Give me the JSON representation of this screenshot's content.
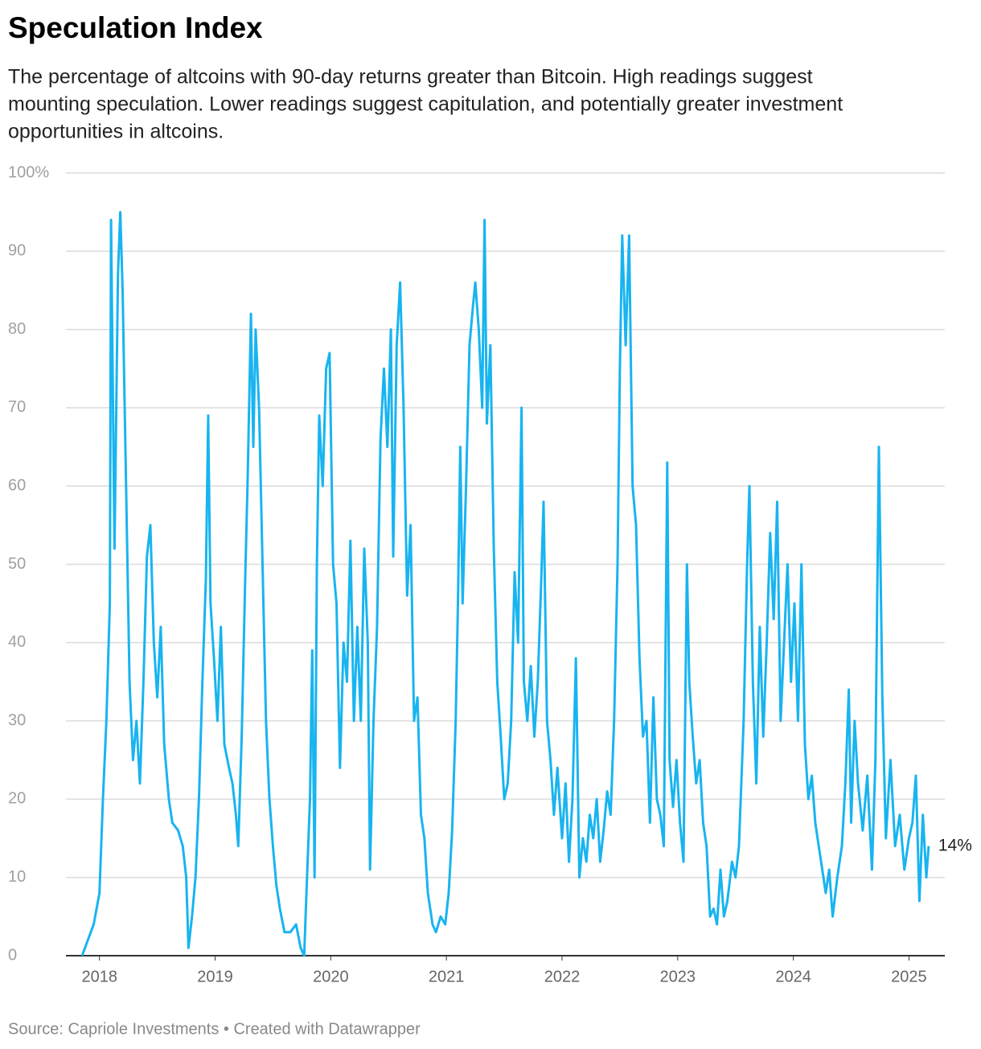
{
  "chart_data": {
    "type": "line",
    "title": "Speculation Index",
    "subtitle": [
      "The percentage of altcoins with 90-day returns greater than Bitcoin. High readings suggest",
      "mounting speculation. Lower readings suggest capitulation, and potentially greater investment",
      "opportunities in altcoins."
    ],
    "source": "Source: Capriole Investments • Created with Datawrapper",
    "end_label": "14%",
    "xlim": [
      2017.71,
      2025.31
    ],
    "xticks": [
      2018,
      2019,
      2020,
      2021,
      2022,
      2023,
      2024,
      2025
    ],
    "ylim": [
      0,
      100
    ],
    "yticks": [
      0,
      10,
      20,
      30,
      40,
      50,
      60,
      70,
      80,
      90,
      {
        "value": 100,
        "label": "100%"
      }
    ],
    "grid": true,
    "x": [
      2017.85,
      2017.9,
      2017.95,
      2018.0,
      2018.03,
      2018.06,
      2018.09,
      2018.1,
      2018.13,
      2018.16,
      2018.18,
      2018.2,
      2018.23,
      2018.26,
      2018.29,
      2018.32,
      2018.35,
      2018.38,
      2018.41,
      2018.44,
      2018.47,
      2018.5,
      2018.53,
      2018.56,
      2018.6,
      2018.63,
      2018.68,
      2018.72,
      2018.75,
      2018.77,
      2018.8,
      2018.83,
      2018.86,
      2018.89,
      2018.92,
      2018.94,
      2018.96,
      2018.99,
      2019.02,
      2019.05,
      2019.08,
      2019.12,
      2019.15,
      2019.18,
      2019.2,
      2019.23,
      2019.26,
      2019.28,
      2019.31,
      2019.33,
      2019.35,
      2019.38,
      2019.41,
      2019.44,
      2019.47,
      2019.5,
      2019.53,
      2019.56,
      2019.6,
      2019.65,
      2019.7,
      2019.74,
      2019.77,
      2019.79,
      2019.82,
      2019.84,
      2019.86,
      2019.88,
      2019.9,
      2019.93,
      2019.96,
      2019.99,
      2020.02,
      2020.05,
      2020.08,
      2020.11,
      2020.14,
      2020.17,
      2020.2,
      2020.23,
      2020.26,
      2020.29,
      2020.32,
      2020.34,
      2020.37,
      2020.4,
      2020.43,
      2020.46,
      2020.49,
      2020.52,
      2020.54,
      2020.57,
      2020.6,
      2020.63,
      2020.66,
      2020.69,
      2020.72,
      2020.75,
      2020.78,
      2020.81,
      2020.84,
      2020.88,
      2020.91,
      2020.95,
      2020.99,
      2021.02,
      2021.05,
      2021.08,
      2021.1,
      2021.12,
      2021.14,
      2021.17,
      2021.2,
      2021.23,
      2021.25,
      2021.28,
      2021.31,
      2021.33,
      2021.35,
      2021.38,
      2021.41,
      2021.44,
      2021.47,
      2021.5,
      2021.53,
      2021.56,
      2021.59,
      2021.62,
      2021.65,
      2021.67,
      2021.7,
      2021.73,
      2021.76,
      2021.79,
      2021.82,
      2021.84,
      2021.87,
      2021.9,
      2021.93,
      2021.96,
      2022.0,
      2022.03,
      2022.06,
      2022.09,
      2022.12,
      2022.15,
      2022.18,
      2022.21,
      2022.24,
      2022.27,
      2022.3,
      2022.33,
      2022.36,
      2022.39,
      2022.42,
      2022.45,
      2022.48,
      2022.5,
      2022.52,
      2022.55,
      2022.58,
      2022.61,
      2022.64,
      2022.67,
      2022.7,
      2022.73,
      2022.76,
      2022.79,
      2022.82,
      2022.85,
      2022.88,
      2022.91,
      2022.93,
      2022.96,
      2022.99,
      2023.02,
      2023.05,
      2023.08,
      2023.1,
      2023.13,
      2023.16,
      2023.19,
      2023.22,
      2023.25,
      2023.28,
      2023.31,
      2023.34,
      2023.37,
      2023.4,
      2023.43,
      2023.47,
      2023.5,
      2023.53,
      2023.57,
      2023.6,
      2023.62,
      2023.65,
      2023.68,
      2023.71,
      2023.74,
      2023.77,
      2023.8,
      2023.83,
      2023.86,
      2023.89,
      2023.92,
      2023.95,
      2023.98,
      2024.01,
      2024.04,
      2024.07,
      2024.1,
      2024.13,
      2024.16,
      2024.19,
      2024.22,
      2024.25,
      2024.28,
      2024.31,
      2024.34,
      2024.38,
      2024.42,
      2024.45,
      2024.48,
      2024.5,
      2024.53,
      2024.56,
      2024.6,
      2024.64,
      2024.68,
      2024.71,
      2024.74,
      2024.77,
      2024.8,
      2024.84,
      2024.88,
      2024.92,
      2024.96,
      2025.0,
      2025.03,
      2025.06,
      2025.09,
      2025.12,
      2025.15,
      2025.17
    ],
    "series": [
      {
        "name": "Speculation Index",
        "color": "#18b4f0",
        "values": [
          0,
          2,
          4,
          8,
          20,
          30,
          45,
          94,
          52,
          87,
          95,
          85,
          60,
          35,
          25,
          30,
          22,
          35,
          51,
          55,
          40,
          33,
          42,
          27,
          20,
          17,
          16,
          14,
          10,
          1,
          5,
          10,
          20,
          35,
          48,
          69,
          45,
          38,
          30,
          42,
          27,
          24,
          22,
          18,
          14,
          28,
          48,
          60,
          82,
          65,
          80,
          70,
          50,
          30,
          20,
          14,
          9,
          6,
          3,
          3,
          4,
          1,
          0,
          8,
          20,
          39,
          10,
          50,
          69,
          60,
          75,
          77,
          50,
          45,
          24,
          40,
          35,
          53,
          30,
          42,
          30,
          52,
          40,
          11,
          30,
          42,
          66,
          75,
          65,
          80,
          51,
          78,
          86,
          70,
          46,
          55,
          30,
          33,
          18,
          15,
          8,
          4,
          3,
          5,
          4,
          8,
          16,
          30,
          45,
          65,
          45,
          60,
          78,
          83,
          86,
          80,
          70,
          94,
          68,
          78,
          52,
          35,
          28,
          20,
          22,
          30,
          49,
          40,
          70,
          35,
          30,
          37,
          28,
          35,
          48,
          58,
          30,
          25,
          18,
          24,
          15,
          22,
          12,
          20,
          38,
          10,
          15,
          12,
          18,
          15,
          20,
          12,
          16,
          21,
          18,
          30,
          50,
          75,
          92,
          78,
          92,
          60,
          55,
          38,
          28,
          30,
          17,
          33,
          20,
          18,
          14,
          63,
          25,
          19,
          25,
          17,
          12,
          50,
          35,
          28,
          22,
          25,
          17,
          14,
          5,
          6,
          4,
          11,
          5,
          7,
          12,
          10,
          14,
          30,
          50,
          60,
          35,
          22,
          42,
          28,
          40,
          54,
          43,
          58,
          30,
          40,
          50,
          35,
          45,
          30,
          50,
          27,
          20,
          23,
          17,
          14,
          11,
          8,
          11,
          5,
          10,
          14,
          22,
          34,
          17,
          30,
          22,
          16,
          23,
          11,
          25,
          65,
          33,
          15,
          25,
          14,
          18,
          11,
          15,
          17,
          23,
          7,
          18,
          10,
          14
        ]
      }
    ]
  }
}
